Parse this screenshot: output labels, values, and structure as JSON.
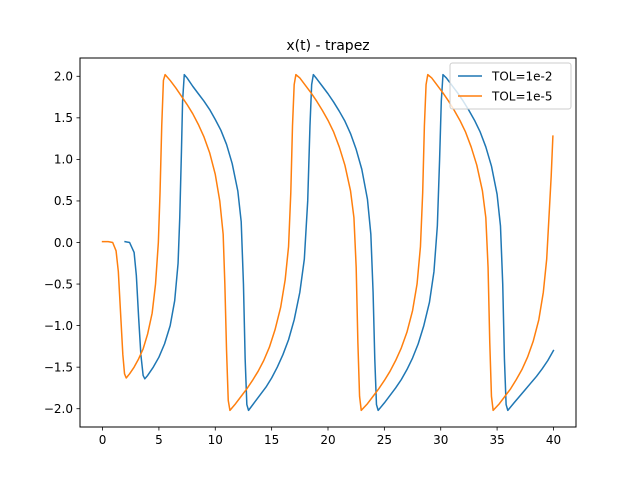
{
  "chart_data": {
    "type": "line",
    "title": "x(t) - trapez",
    "xlabel": "",
    "ylabel": "",
    "xlim": [
      -2.0,
      42.0
    ],
    "ylim": [
      -2.22,
      2.22
    ],
    "xticks": [
      0,
      5,
      10,
      15,
      20,
      25,
      30,
      35,
      40
    ],
    "yticks": [
      -2.0,
      -1.5,
      -1.0,
      -0.5,
      0.0,
      0.5,
      1.0,
      1.5,
      2.0
    ],
    "xtick_labels": [
      "0",
      "5",
      "10",
      "15",
      "20",
      "25",
      "30",
      "35",
      "40"
    ],
    "ytick_labels": [
      "−2.0",
      "−1.5",
      "−1.0",
      "−0.5",
      "0.0",
      "0.5",
      "1.0",
      "1.5",
      "2.0"
    ],
    "grid": false,
    "legend_position": "top-right",
    "series": [
      {
        "name": "TOL=1e-2",
        "color": "#1f77b4",
        "points": [
          [
            2.0,
            0.01
          ],
          [
            2.4,
            0.0
          ],
          [
            2.8,
            -0.12
          ],
          [
            3.0,
            -0.4
          ],
          [
            3.2,
            -0.9
          ],
          [
            3.4,
            -1.35
          ],
          [
            3.6,
            -1.6
          ],
          [
            3.75,
            -1.64
          ],
          [
            4.0,
            -1.6
          ],
          [
            4.5,
            -1.5
          ],
          [
            5.0,
            -1.38
          ],
          [
            5.5,
            -1.22
          ],
          [
            6.0,
            -1.0
          ],
          [
            6.4,
            -0.7
          ],
          [
            6.7,
            -0.25
          ],
          [
            6.85,
            0.3
          ],
          [
            7.0,
            1.1
          ],
          [
            7.1,
            1.7
          ],
          [
            7.25,
            2.02
          ],
          [
            7.5,
            1.98
          ],
          [
            8.0,
            1.88
          ],
          [
            8.5,
            1.79
          ],
          [
            9.0,
            1.7
          ],
          [
            9.5,
            1.6
          ],
          [
            10.0,
            1.48
          ],
          [
            10.5,
            1.35
          ],
          [
            11.0,
            1.18
          ],
          [
            11.5,
            0.95
          ],
          [
            12.0,
            0.62
          ],
          [
            12.3,
            0.25
          ],
          [
            12.5,
            -0.5
          ],
          [
            12.65,
            -1.4
          ],
          [
            12.8,
            -1.95
          ],
          [
            12.95,
            -2.02
          ],
          [
            13.5,
            -1.92
          ],
          [
            14.0,
            -1.83
          ],
          [
            14.5,
            -1.74
          ],
          [
            15.0,
            -1.63
          ],
          [
            15.5,
            -1.5
          ],
          [
            16.0,
            -1.35
          ],
          [
            16.5,
            -1.17
          ],
          [
            17.0,
            -0.93
          ],
          [
            17.5,
            -0.6
          ],
          [
            17.9,
            -0.2
          ],
          [
            18.2,
            0.5
          ],
          [
            18.4,
            1.4
          ],
          [
            18.55,
            1.9
          ],
          [
            18.7,
            2.02
          ],
          [
            19.0,
            1.97
          ],
          [
            19.5,
            1.88
          ],
          [
            20.0,
            1.79
          ],
          [
            20.5,
            1.69
          ],
          [
            21.0,
            1.58
          ],
          [
            21.5,
            1.46
          ],
          [
            22.0,
            1.31
          ],
          [
            22.5,
            1.12
          ],
          [
            23.0,
            0.88
          ],
          [
            23.5,
            0.52
          ],
          [
            23.8,
            0.1
          ],
          [
            24.0,
            -0.6
          ],
          [
            24.15,
            -1.4
          ],
          [
            24.3,
            -1.95
          ],
          [
            24.45,
            -2.02
          ],
          [
            25.0,
            -1.93
          ],
          [
            25.5,
            -1.84
          ],
          [
            26.0,
            -1.75
          ],
          [
            26.5,
            -1.65
          ],
          [
            27.0,
            -1.53
          ],
          [
            27.5,
            -1.39
          ],
          [
            28.0,
            -1.22
          ],
          [
            28.5,
            -1.0
          ],
          [
            29.0,
            -0.72
          ],
          [
            29.4,
            -0.35
          ],
          [
            29.7,
            0.2
          ],
          [
            29.9,
            1.0
          ],
          [
            30.05,
            1.7
          ],
          [
            30.2,
            2.02
          ],
          [
            30.5,
            1.98
          ],
          [
            31.0,
            1.89
          ],
          [
            31.5,
            1.8
          ],
          [
            32.0,
            1.7
          ],
          [
            32.5,
            1.59
          ],
          [
            33.0,
            1.47
          ],
          [
            33.5,
            1.33
          ],
          [
            34.0,
            1.15
          ],
          [
            34.5,
            0.92
          ],
          [
            35.0,
            0.58
          ],
          [
            35.3,
            0.2
          ],
          [
            35.5,
            -0.5
          ],
          [
            35.65,
            -1.4
          ],
          [
            35.8,
            -1.95
          ],
          [
            35.95,
            -2.02
          ],
          [
            36.5,
            -1.93
          ],
          [
            37.0,
            -1.85
          ],
          [
            37.5,
            -1.77
          ],
          [
            38.0,
            -1.69
          ],
          [
            38.5,
            -1.61
          ],
          [
            39.0,
            -1.52
          ],
          [
            39.5,
            -1.42
          ],
          [
            40.0,
            -1.3
          ]
        ]
      },
      {
        "name": "TOL=1e-5",
        "color": "#ff7f0e",
        "points": [
          [
            0.0,
            0.01
          ],
          [
            0.5,
            0.01
          ],
          [
            0.9,
            0.0
          ],
          [
            1.2,
            -0.1
          ],
          [
            1.4,
            -0.35
          ],
          [
            1.6,
            -0.85
          ],
          [
            1.8,
            -1.35
          ],
          [
            1.95,
            -1.58
          ],
          [
            2.1,
            -1.63
          ],
          [
            2.4,
            -1.58
          ],
          [
            2.8,
            -1.5
          ],
          [
            3.2,
            -1.4
          ],
          [
            3.6,
            -1.28
          ],
          [
            4.0,
            -1.1
          ],
          [
            4.4,
            -0.85
          ],
          [
            4.7,
            -0.5
          ],
          [
            4.95,
            0.0
          ],
          [
            5.1,
            0.6
          ],
          [
            5.25,
            1.4
          ],
          [
            5.4,
            1.95
          ],
          [
            5.55,
            2.02
          ],
          [
            6.0,
            1.95
          ],
          [
            6.5,
            1.86
          ],
          [
            7.0,
            1.76
          ],
          [
            7.5,
            1.66
          ],
          [
            8.0,
            1.55
          ],
          [
            8.5,
            1.42
          ],
          [
            9.0,
            1.27
          ],
          [
            9.5,
            1.08
          ],
          [
            10.0,
            0.82
          ],
          [
            10.4,
            0.5
          ],
          [
            10.7,
            0.1
          ],
          [
            10.85,
            -0.5
          ],
          [
            11.0,
            -1.3
          ],
          [
            11.15,
            -1.9
          ],
          [
            11.3,
            -2.02
          ],
          [
            11.8,
            -1.94
          ],
          [
            12.3,
            -1.85
          ],
          [
            12.8,
            -1.76
          ],
          [
            13.3,
            -1.66
          ],
          [
            13.8,
            -1.55
          ],
          [
            14.3,
            -1.42
          ],
          [
            14.8,
            -1.26
          ],
          [
            15.3,
            -1.05
          ],
          [
            15.8,
            -0.78
          ],
          [
            16.2,
            -0.45
          ],
          [
            16.5,
            -0.05
          ],
          [
            16.7,
            0.6
          ],
          [
            16.85,
            1.4
          ],
          [
            17.0,
            1.9
          ],
          [
            17.15,
            2.02
          ],
          [
            17.5,
            1.98
          ],
          [
            18.0,
            1.89
          ],
          [
            18.5,
            1.8
          ],
          [
            19.0,
            1.7
          ],
          [
            19.5,
            1.59
          ],
          [
            20.0,
            1.47
          ],
          [
            20.5,
            1.33
          ],
          [
            21.0,
            1.15
          ],
          [
            21.5,
            0.93
          ],
          [
            22.0,
            0.62
          ],
          [
            22.3,
            0.3
          ],
          [
            22.5,
            -0.3
          ],
          [
            22.65,
            -1.2
          ],
          [
            22.8,
            -1.85
          ],
          [
            22.95,
            -2.02
          ],
          [
            23.5,
            -1.94
          ],
          [
            24.0,
            -1.85
          ],
          [
            24.5,
            -1.76
          ],
          [
            25.0,
            -1.66
          ],
          [
            25.5,
            -1.55
          ],
          [
            26.0,
            -1.42
          ],
          [
            26.5,
            -1.27
          ],
          [
            27.0,
            -1.08
          ],
          [
            27.5,
            -0.82
          ],
          [
            27.9,
            -0.5
          ],
          [
            28.2,
            -0.05
          ],
          [
            28.4,
            0.6
          ],
          [
            28.55,
            1.4
          ],
          [
            28.7,
            1.9
          ],
          [
            28.85,
            2.02
          ],
          [
            29.2,
            1.98
          ],
          [
            29.7,
            1.89
          ],
          [
            30.2,
            1.8
          ],
          [
            30.7,
            1.7
          ],
          [
            31.2,
            1.59
          ],
          [
            31.7,
            1.47
          ],
          [
            32.2,
            1.33
          ],
          [
            32.7,
            1.15
          ],
          [
            33.2,
            0.93
          ],
          [
            33.7,
            0.62
          ],
          [
            34.0,
            0.3
          ],
          [
            34.2,
            -0.3
          ],
          [
            34.35,
            -1.2
          ],
          [
            34.5,
            -1.85
          ],
          [
            34.65,
            -2.02
          ],
          [
            35.2,
            -1.94
          ],
          [
            35.7,
            -1.85
          ],
          [
            36.2,
            -1.76
          ],
          [
            36.7,
            -1.65
          ],
          [
            37.2,
            -1.53
          ],
          [
            37.7,
            -1.38
          ],
          [
            38.2,
            -1.19
          ],
          [
            38.7,
            -0.93
          ],
          [
            39.1,
            -0.6
          ],
          [
            39.4,
            -0.2
          ],
          [
            39.6,
            0.3
          ],
          [
            39.8,
            0.8
          ],
          [
            39.95,
            1.28
          ]
        ]
      }
    ]
  }
}
